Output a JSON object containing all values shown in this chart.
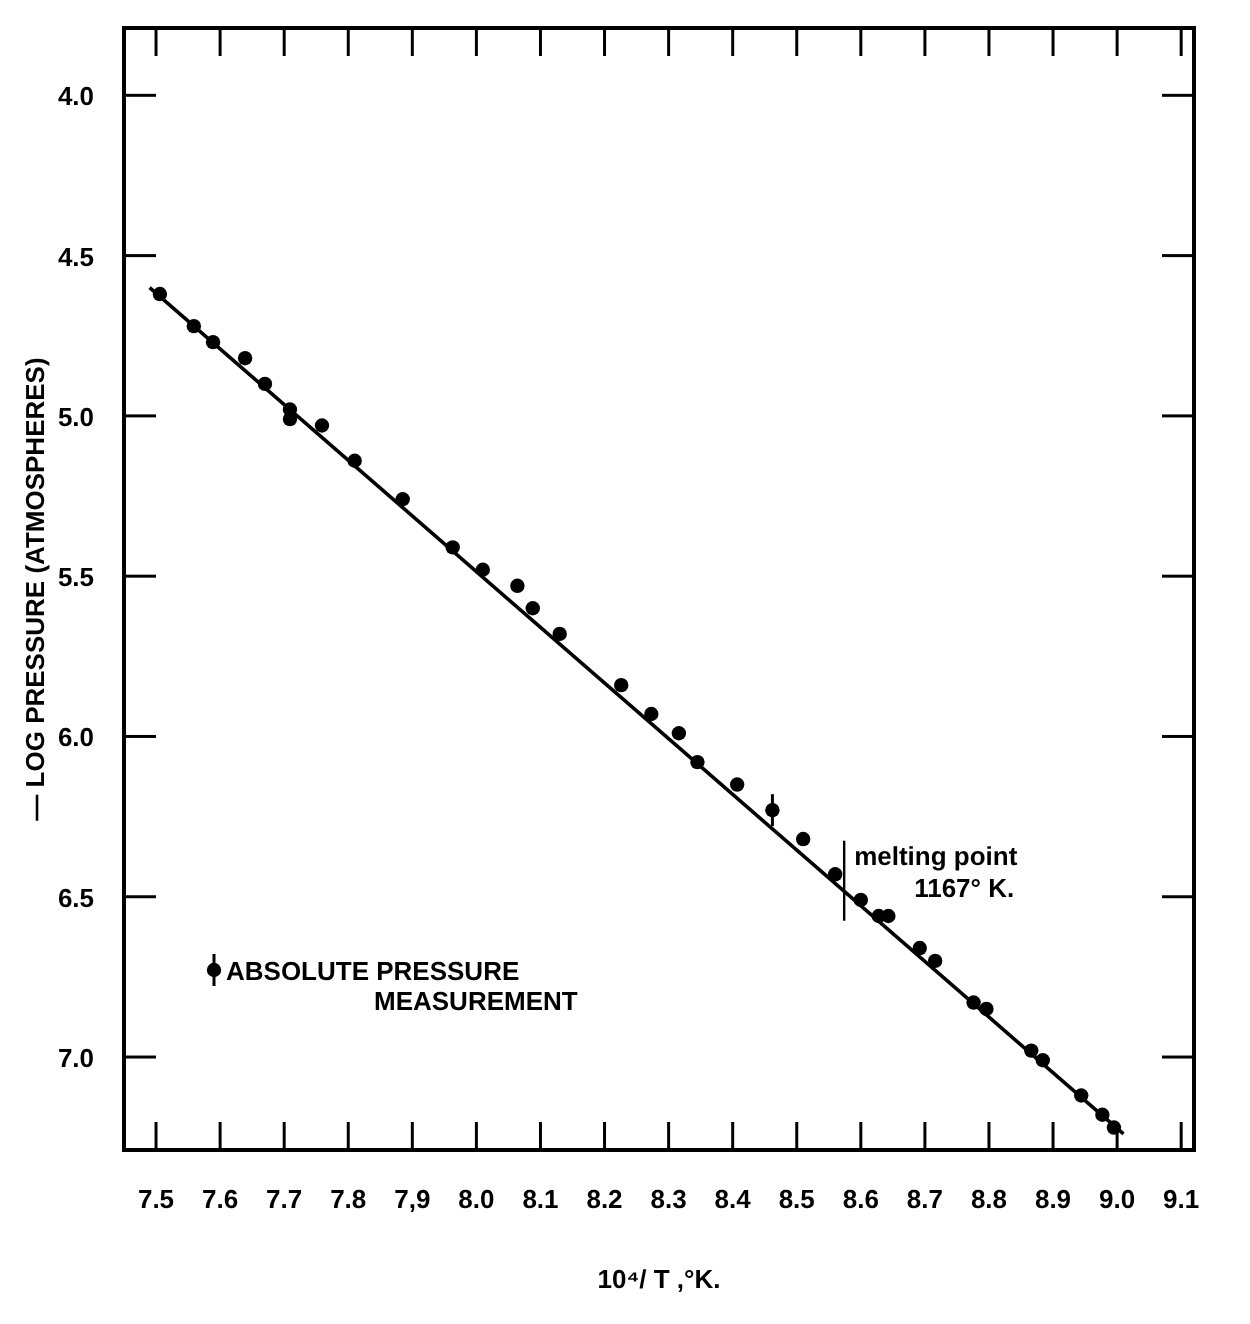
{
  "chart_data": {
    "type": "scatter",
    "xlabel": "10⁴/ T ,°K.",
    "ylabel": "— LOG PRESSURE (ATMOSPHERES)",
    "xlim": [
      7.45,
      9.12
    ],
    "ylim": [
      7.29,
      3.79
    ],
    "xticks": [
      7.5,
      7.6,
      7.7,
      7.8,
      {
        "value": 7.9,
        "label": "7,9"
      },
      {
        "value": 8,
        "label": "8.0"
      },
      8.1,
      8.2,
      8.3,
      8.4,
      8.5,
      8.6,
      8.7,
      8.8,
      8.9,
      {
        "value": 9,
        "label": "9.0"
      },
      9.1
    ],
    "yticks": [
      {
        "value": 4,
        "label": "4.0"
      },
      4.5,
      {
        "value": 5,
        "label": "5.0"
      },
      5.5,
      {
        "value": 6,
        "label": "6.0"
      },
      6.5,
      {
        "value": 7,
        "label": "7.0"
      }
    ],
    "marker": "circle",
    "legend": "bottom left",
    "series": [
      {
        "color": "#000000",
        "x": [
          7.506,
          7.559,
          7.589,
          7.639,
          7.67,
          7.709,
          7.709,
          7.759,
          7.81,
          7.885,
          7.963,
          8.01,
          8.064,
          8.088,
          8.13,
          8.226,
          8.273,
          8.316,
          8.345,
          8.407,
          8.51,
          8.56,
          8.6,
          8.628,
          8.643,
          8.692,
          8.716,
          8.776,
          8.796,
          8.866,
          8.884,
          8.944,
          8.977,
          8.995
        ],
        "values": [
          4.62,
          4.72,
          4.77,
          4.82,
          4.9,
          4.98,
          5.01,
          5.03,
          5.14,
          5.26,
          5.41,
          5.48,
          5.53,
          5.6,
          5.68,
          5.84,
          5.93,
          5.99,
          6.08,
          6.15,
          6.32,
          6.43,
          6.51,
          6.56,
          6.56,
          6.66,
          6.7,
          6.83,
          6.85,
          6.98,
          7.01,
          7.12,
          7.18,
          7.22
        ]
      },
      {
        "name": "ABSOLUTE PRESSURE\nMEASUREMENT",
        "color": "#000000",
        "x": [
          8.462
        ],
        "values": [
          6.23
        ],
        "errors": [
          0.05
        ]
      },
      {
        "type": "line",
        "marker": "none",
        "color": "#000000",
        "x": [
          7.49,
          9.01
        ],
        "values": [
          4.6,
          7.24
        ]
      }
    ],
    "annotations": [
      {
        "text": "melting point\n1167° K.",
        "x": 8.574,
        "y": 6.45
      }
    ]
  }
}
